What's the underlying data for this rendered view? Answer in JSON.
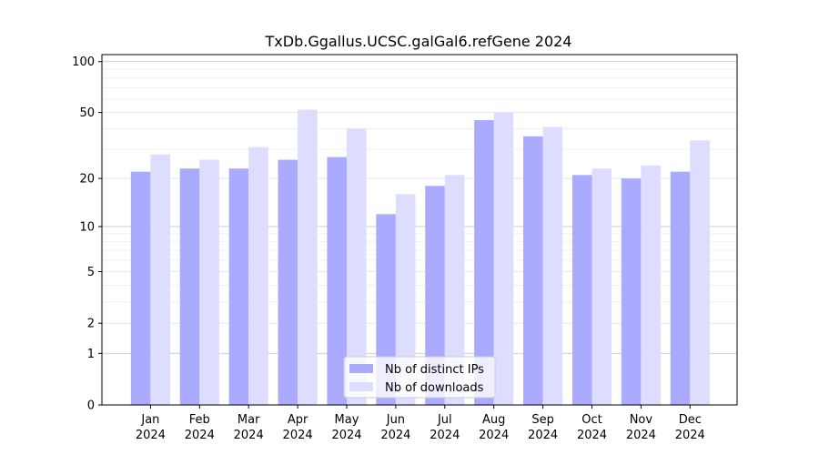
{
  "chart_data": {
    "type": "bar",
    "title": "TxDb.Ggallus.UCSC.galGal6.refGene 2024",
    "xlabel": "",
    "ylabel": "",
    "y_scale": "log1p",
    "ylim": [
      0,
      110
    ],
    "y_ticks": [
      0,
      1,
      2,
      5,
      10,
      20,
      50,
      100
    ],
    "grid": true,
    "legend_position": "bottom-center",
    "categories": [
      [
        "Jan",
        "2024"
      ],
      [
        "Feb",
        "2024"
      ],
      [
        "Mar",
        "2024"
      ],
      [
        "Apr",
        "2024"
      ],
      [
        "May",
        "2024"
      ],
      [
        "Jun",
        "2024"
      ],
      [
        "Jul",
        "2024"
      ],
      [
        "Aug",
        "2024"
      ],
      [
        "Sep",
        "2024"
      ],
      [
        "Oct",
        "2024"
      ],
      [
        "Nov",
        "2024"
      ],
      [
        "Dec",
        "2024"
      ]
    ],
    "series": [
      {
        "name": "Nb of distinct IPs",
        "color": "#aaaaff",
        "values": [
          22,
          23,
          23,
          26,
          27,
          12,
          18,
          45,
          36,
          21,
          20,
          22
        ]
      },
      {
        "name": "Nb of downloads",
        "color": "#ddddff",
        "values": [
          28,
          26,
          31,
          52,
          40,
          16,
          21,
          50,
          41,
          23,
          24,
          34
        ]
      }
    ]
  }
}
